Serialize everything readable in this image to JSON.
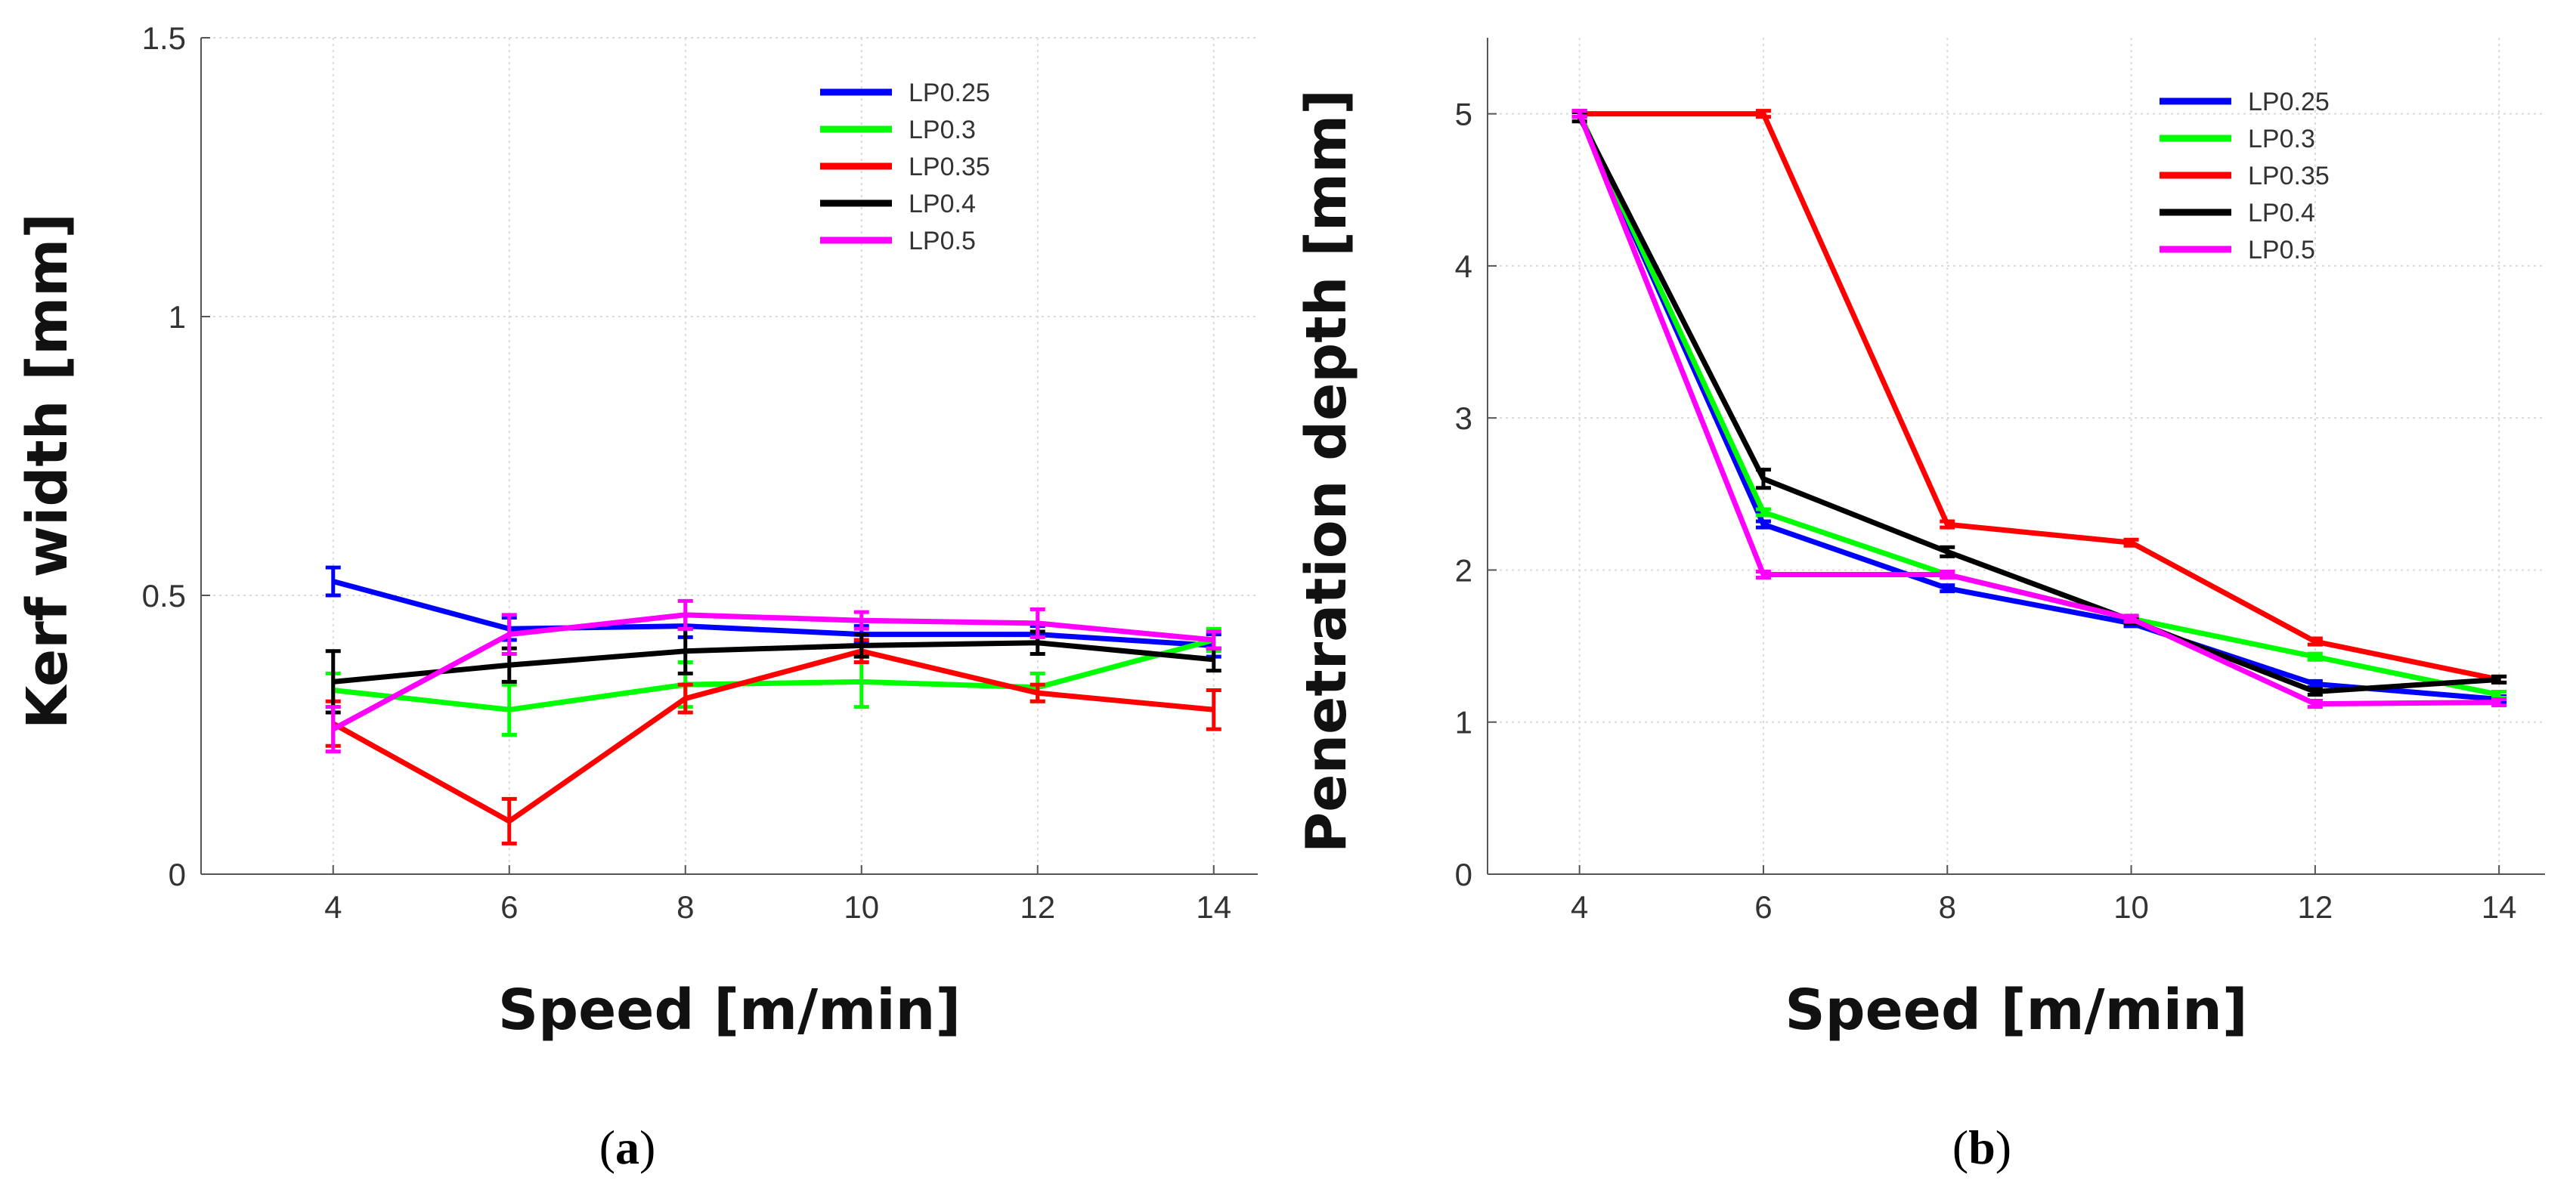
{
  "chart_data": [
    {
      "type": "line",
      "panel": "a",
      "caption_open": "(",
      "caption_letter": "a",
      "caption_close": ")",
      "xlabel": "Speed [m/min]",
      "ylabel": "Kerf width [mm]",
      "x": [
        4,
        6,
        8,
        10,
        12,
        14
      ],
      "xlim": [
        2.5,
        14.5
      ],
      "xticks": [
        "4",
        "6",
        "8",
        "10",
        "12",
        "14"
      ],
      "ylim": [
        0,
        1.5
      ],
      "yticks": [
        {
          "value": 0,
          "label": "0"
        },
        {
          "value": 0.5,
          "label": "0.5"
        },
        {
          "value": 1,
          "label": "1"
        },
        {
          "value": 1.5,
          "label": "1.5"
        }
      ],
      "grid": true,
      "legend_position": "top-right",
      "series": [
        {
          "name": "LP0.25",
          "color": "#0000ff",
          "values": [
            0.525,
            0.44,
            0.445,
            0.43,
            0.43,
            0.41
          ],
          "errors": [
            0.025,
            0.02,
            0.02,
            0.015,
            0.015,
            0.02
          ]
        },
        {
          "name": "LP0.3",
          "color": "#00ff00",
          "values": [
            0.33,
            0.295,
            0.34,
            0.345,
            0.335,
            0.42
          ],
          "errors": [
            0.03,
            0.045,
            0.04,
            0.045,
            0.025,
            0.02
          ]
        },
        {
          "name": "LP0.35",
          "color": "#ff0000",
          "values": [
            0.27,
            0.095,
            0.315,
            0.4,
            0.325,
            0.295
          ],
          "errors": [
            0.04,
            0.04,
            0.025,
            0.02,
            0.015,
            0.035
          ]
        },
        {
          "name": "LP0.4",
          "color": "#000000",
          "values": [
            0.345,
            0.375,
            0.4,
            0.41,
            0.415,
            0.385
          ],
          "errors": [
            0.055,
            0.03,
            0.04,
            0.02,
            0.02,
            0.02
          ]
        },
        {
          "name": "LP0.5",
          "color": "#ff00ff",
          "values": [
            0.26,
            0.43,
            0.465,
            0.455,
            0.45,
            0.42
          ],
          "errors": [
            0.04,
            0.035,
            0.025,
            0.015,
            0.025,
            0.015
          ]
        }
      ]
    },
    {
      "type": "line",
      "panel": "b",
      "caption_open": "(",
      "caption_letter": "b",
      "caption_close": ")",
      "xlabel": "Speed [m/min]",
      "ylabel": "Penetration depth [mm]",
      "x": [
        4,
        6,
        8,
        10,
        12,
        14
      ],
      "xlim": [
        3,
        14.5
      ],
      "xticks": [
        "4",
        "6",
        "8",
        "10",
        "12",
        "14"
      ],
      "ylim": [
        0,
        5.5
      ],
      "yticks": [
        {
          "value": 0,
          "label": "0"
        },
        {
          "value": 1,
          "label": "1"
        },
        {
          "value": 2,
          "label": "2"
        },
        {
          "value": 3,
          "label": "3"
        },
        {
          "value": 4,
          "label": "4"
        },
        {
          "value": 5,
          "label": "5"
        }
      ],
      "grid": true,
      "legend_position": "top-right",
      "series": [
        {
          "name": "LP0.25",
          "color": "#0000ff",
          "values": [
            5.0,
            2.3,
            1.88,
            1.65,
            1.25,
            1.15
          ],
          "errors": [
            0.02,
            0.02,
            0.02,
            0.02,
            0.02,
            0.02
          ]
        },
        {
          "name": "LP0.3",
          "color": "#00ff00",
          "values": [
            5.0,
            2.38,
            1.97,
            1.68,
            1.43,
            1.18
          ],
          "errors": [
            0.02,
            0.02,
            0.02,
            0.02,
            0.02,
            0.02
          ]
        },
        {
          "name": "LP0.35",
          "color": "#ff0000",
          "values": [
            5.0,
            5.0,
            2.3,
            2.18,
            1.53,
            1.28
          ],
          "errors": [
            0.02,
            0.02,
            0.02,
            0.02,
            0.02,
            0.02
          ]
        },
        {
          "name": "LP0.4",
          "color": "#000000",
          "values": [
            4.98,
            2.6,
            2.12,
            1.67,
            1.2,
            1.28
          ],
          "errors": [
            0.03,
            0.06,
            0.03,
            0.02,
            0.02,
            0.02
          ]
        },
        {
          "name": "LP0.5",
          "color": "#ff00ff",
          "values": [
            5.0,
            1.97,
            1.97,
            1.68,
            1.12,
            1.13
          ],
          "errors": [
            0.02,
            0.02,
            0.02,
            0.02,
            0.02,
            0.02
          ]
        }
      ]
    }
  ]
}
